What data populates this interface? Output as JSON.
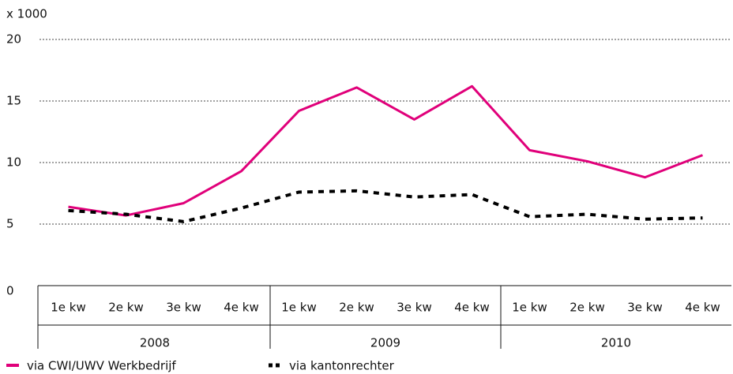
{
  "chart_data": {
    "type": "line",
    "y_unit_label": "x 1000",
    "categories": [
      "1e kw",
      "2e kw",
      "3e kw",
      "4e kw",
      "1e kw",
      "2e kw",
      "3e kw",
      "4e kw",
      "1e kw",
      "2e kw",
      "3e kw",
      "4e kw"
    ],
    "groups": [
      "2008",
      "2009",
      "2010"
    ],
    "series": [
      {
        "name": "via CWI/UWV Werkbedrijf",
        "color": "#e0007a",
        "dashed": false,
        "values": [
          6.4,
          5.7,
          6.7,
          9.3,
          14.2,
          16.1,
          13.5,
          16.2,
          11.0,
          10.1,
          8.8,
          10.6
        ]
      },
      {
        "name": "via kantonrechter",
        "color": "#000000",
        "dashed": true,
        "values": [
          6.1,
          5.8,
          5.2,
          6.3,
          7.6,
          7.7,
          7.2,
          7.4,
          5.6,
          5.8,
          5.4,
          5.5
        ]
      }
    ],
    "ylim": [
      0,
      20
    ],
    "yticks": [
      0,
      5,
      10,
      15,
      20
    ],
    "grid": true,
    "legend": "bottom"
  }
}
